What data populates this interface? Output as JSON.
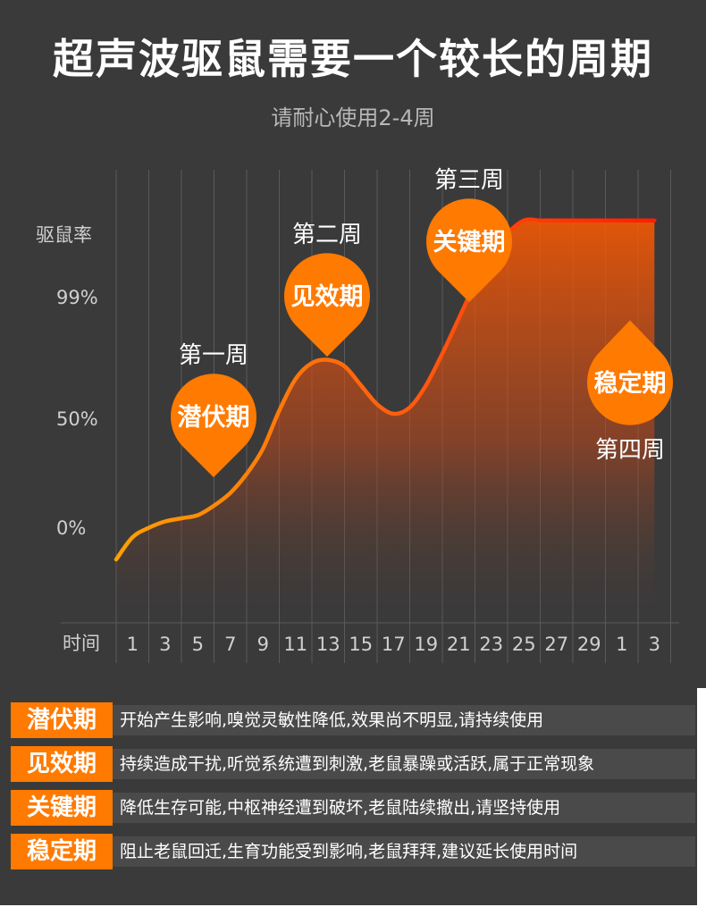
{
  "title": "超声波驱鼠需要一个较长的周期",
  "subtitle": "请耐心使用2-4周",
  "chart_data": {
    "type": "area",
    "ylabel": "驱鼠率",
    "xlabel": "时间",
    "y_ticks": [
      "99%",
      "50%",
      "0%"
    ],
    "x_ticks": [
      "1",
      "3",
      "5",
      "7",
      "9",
      "11",
      "13",
      "15",
      "17",
      "19",
      "21",
      "23",
      "25",
      "27",
      "29",
      "1",
      "3"
    ],
    "x_index": [
      0,
      0.5,
      1,
      1.5,
      2,
      2.5,
      3,
      3.5,
      4,
      4.5,
      5,
      5.5,
      6,
      6.5,
      7,
      7.5,
      8,
      8.5,
      9,
      9.5,
      10,
      10.5,
      11,
      11.5,
      12,
      12.5,
      13,
      13.5,
      14,
      14.5,
      15,
      15.5,
      16,
      16.5
    ],
    "values": [
      -5,
      2,
      5,
      7,
      8,
      9,
      12,
      16,
      22,
      30,
      42,
      52,
      57,
      58,
      56,
      50,
      44,
      41,
      43,
      50,
      60,
      71,
      82,
      92,
      98,
      102,
      102,
      102,
      102,
      102,
      102,
      102,
      102,
      102
    ],
    "ylim": [
      -25,
      118
    ],
    "phases": [
      {
        "week": "第一周",
        "name": "潜伏期"
      },
      {
        "week": "第二周",
        "name": "见效期"
      },
      {
        "week": "第三周",
        "name": "关键期"
      },
      {
        "week": "第四周",
        "name": "稳定期"
      }
    ],
    "colors": {
      "line_start": "#ffa000",
      "line_end": "#ff1e00",
      "fill": "#ff5a00",
      "marker": "#ff7a00",
      "grid": "#5a5a5a",
      "axis_text": "#d0d0d0"
    }
  },
  "legend": [
    {
      "tag": "潜伏期",
      "text": "开始产生影响,嗅觉灵敏性降低,效果尚不明显,请持续使用"
    },
    {
      "tag": "见效期",
      "text": "持续造成干扰,听觉系统遭到刺激,老鼠暴躁或活跃,属于正常现象"
    },
    {
      "tag": "关键期",
      "text": "降低生存可能,中枢神经遭到破坏,老鼠陆续撤出,请坚持使用"
    },
    {
      "tag": "稳定期",
      "text": "阻止老鼠回迁,生育功能受到影响,老鼠拜拜,建议延长使用时间"
    }
  ]
}
